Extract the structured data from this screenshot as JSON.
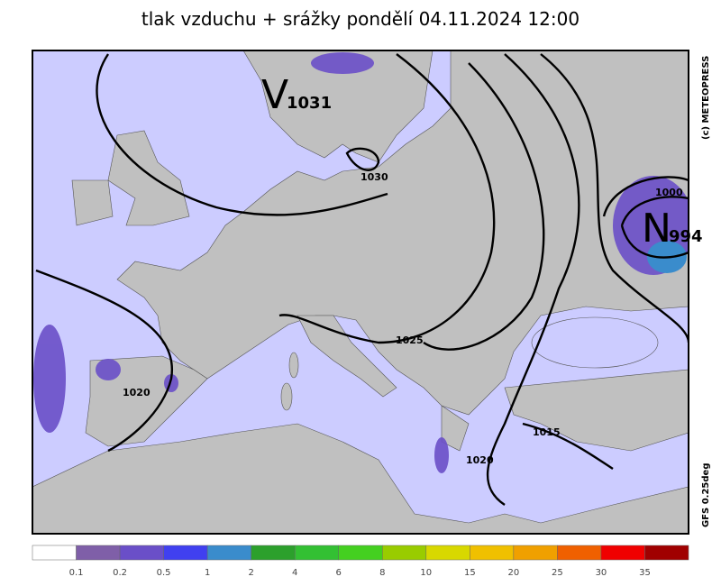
{
  "header": {
    "title": "tlak vzduchu + srážky pondělí 04.11.2024 12:00"
  },
  "map": {
    "highs": [
      {
        "symbol": "V",
        "value": "1031"
      }
    ],
    "lows": [
      {
        "symbol": "N",
        "value": "994"
      }
    ],
    "isobar_labels": [
      "1030",
      "1025",
      "1020",
      "1020",
      "1015",
      "1000"
    ]
  },
  "credits": {
    "copyright": "(c) METEOPRESS",
    "model": "GFS 0.25deg"
  },
  "legend": {
    "colors": [
      "#ffffff",
      "#7f5fa8",
      "#6a4fc8",
      "#4040f0",
      "#3a8ccc",
      "#2ca02c",
      "#33c033",
      "#44d020",
      "#99cc00",
      "#d8d800",
      "#f0c000",
      "#f0a000",
      "#f06000",
      "#f00000",
      "#a00000"
    ],
    "labels": [
      "0.1",
      "0.2",
      "0.5",
      "1",
      "2",
      "4",
      "6",
      "8",
      "10",
      "15",
      "20",
      "25",
      "30",
      "35"
    ]
  }
}
